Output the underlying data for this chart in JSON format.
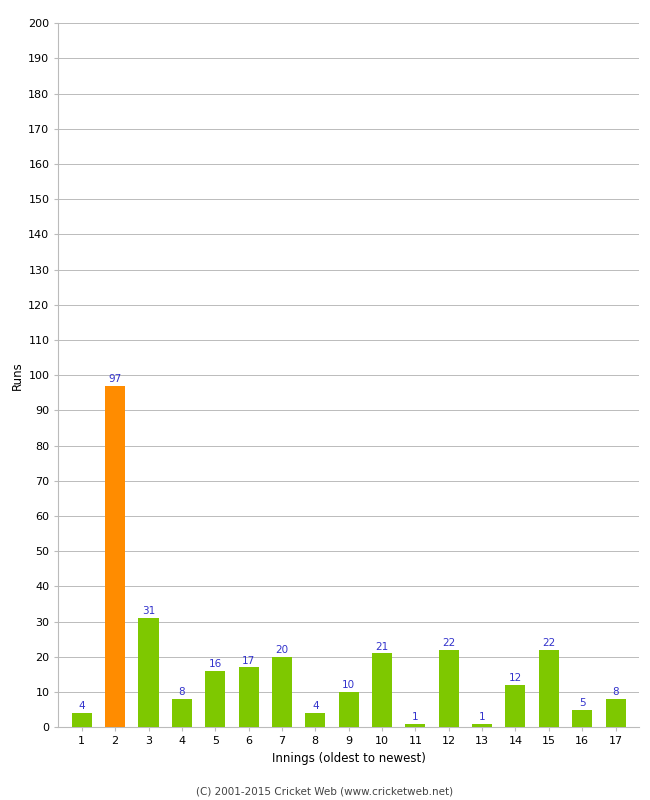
{
  "xlabel": "Innings (oldest to newest)",
  "ylabel": "Runs",
  "categories": [
    "1",
    "2",
    "3",
    "4",
    "5",
    "6",
    "7",
    "8",
    "9",
    "10",
    "11",
    "12",
    "13",
    "14",
    "15",
    "16",
    "17"
  ],
  "values": [
    4,
    97,
    31,
    8,
    16,
    17,
    20,
    4,
    10,
    21,
    1,
    22,
    1,
    12,
    22,
    5,
    8
  ],
  "bar_colors": [
    "#7ec800",
    "#ff8c00",
    "#7ec800",
    "#7ec800",
    "#7ec800",
    "#7ec800",
    "#7ec800",
    "#7ec800",
    "#7ec800",
    "#7ec800",
    "#7ec800",
    "#7ec800",
    "#7ec800",
    "#7ec800",
    "#7ec800",
    "#7ec800",
    "#7ec800"
  ],
  "label_color": "#3333cc",
  "ylim": [
    0,
    200
  ],
  "ytick_step": 10,
  "background_color": "#ffffff",
  "grid_color": "#bbbbbb",
  "footer": "(C) 2001-2015 Cricket Web (www.cricketweb.net)",
  "bar_width": 0.6
}
